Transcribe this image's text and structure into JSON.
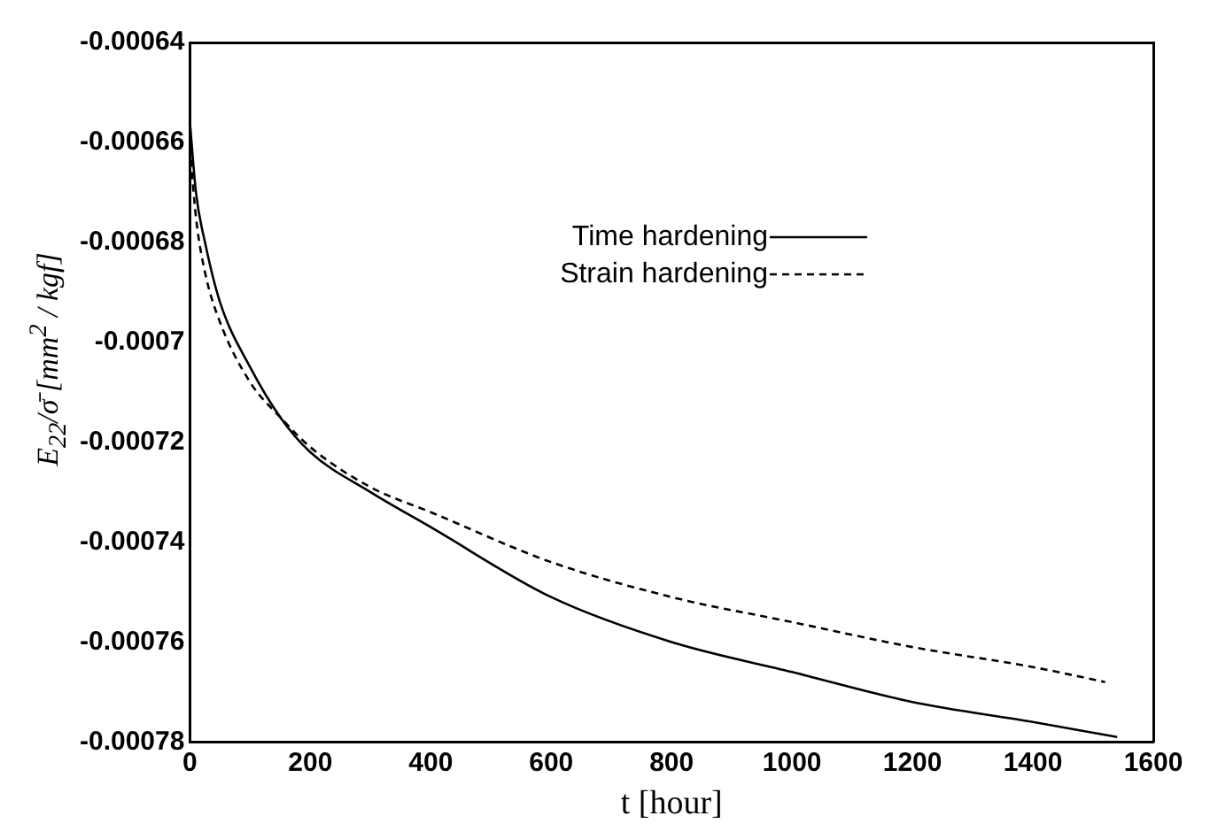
{
  "chart_data": {
    "type": "line",
    "xlabel": "t [hour]",
    "ylabel": "E$_{22}$/σ̄  [mm$^{2}$ / kgf]",
    "xlim": [
      0,
      1600
    ],
    "xticks": [
      0,
      200,
      400,
      600,
      800,
      1000,
      1200,
      1400,
      1600
    ],
    "ylim": [
      -0.00078,
      -0.00064
    ],
    "yticks": [
      -0.00078,
      -0.00076,
      -0.00074,
      -0.00072,
      -0.0007,
      -0.00068,
      -0.00066,
      -0.00064
    ],
    "grid": false,
    "legend": "top",
    "marker": "none",
    "series": [
      {
        "name": "Time hardening",
        "color": "#000000",
        "line_style": "solid",
        "x": [
          0,
          10,
          25,
          50,
          100,
          150,
          200,
          300,
          400,
          600,
          800,
          1000,
          1200,
          1400,
          1540
        ],
        "values": [
          -0.000656,
          -0.00067,
          -0.00068,
          -0.000692,
          -0.000705,
          -0.000715,
          -0.000722,
          -0.00073,
          -0.000737,
          -0.000751,
          -0.00076,
          -0.000766,
          -0.000772,
          -0.000776,
          -0.000779
        ]
      },
      {
        "name": "Strain hardening",
        "color": "#000000",
        "line_style": "dashed",
        "x": [
          0,
          10,
          25,
          50,
          100,
          150,
          200,
          300,
          400,
          600,
          800,
          1000,
          1200,
          1400,
          1520
        ],
        "values": [
          -0.000661,
          -0.000675,
          -0.000686,
          -0.000696,
          -0.000708,
          -0.000715,
          -0.000721,
          -0.000729,
          -0.000734,
          -0.000744,
          -0.000751,
          -0.000756,
          -0.000761,
          -0.000765,
          -0.000768
        ]
      }
    ]
  }
}
